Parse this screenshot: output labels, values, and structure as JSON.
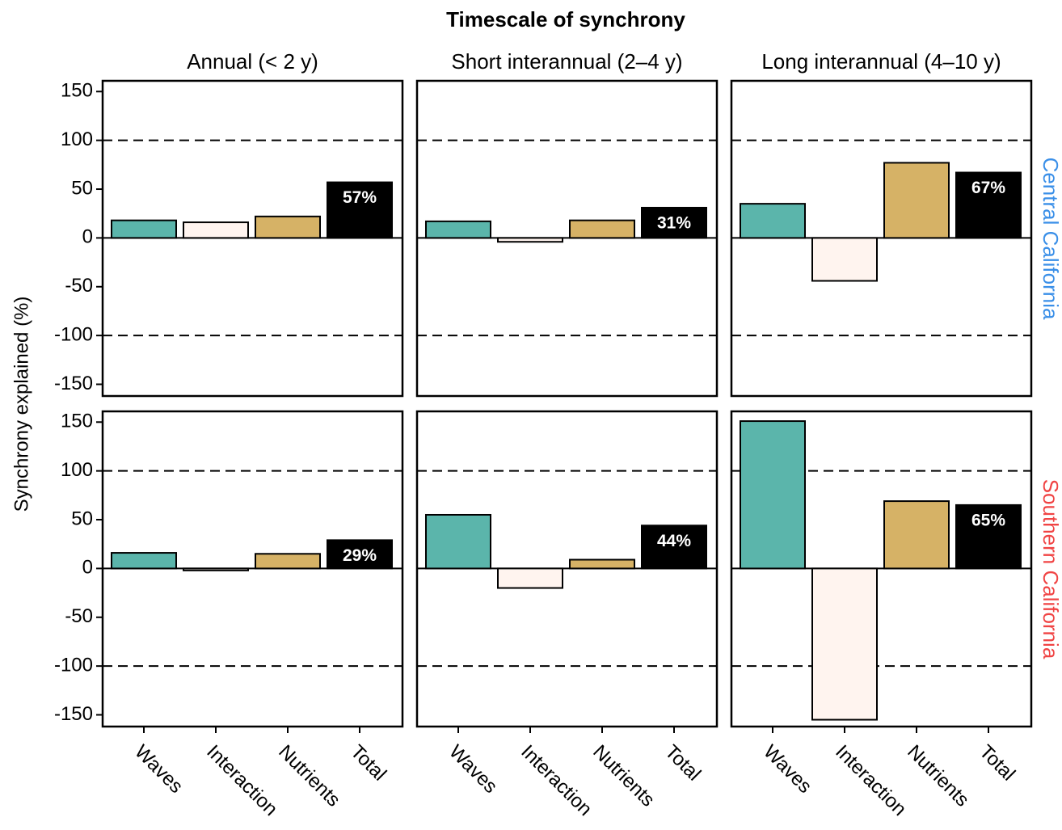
{
  "title": "Timescale of synchrony",
  "y_label": "Synchrony explained (%)",
  "columns": [
    "Annual (< 2 y)",
    "Short interannual (2–4 y)",
    "Long interannual (4–10 y)"
  ],
  "rows": [
    {
      "label": "Central California",
      "color": "#3a8fe8"
    },
    {
      "label": "Southern California",
      "color": "#f04444"
    }
  ],
  "colors": [
    "#5bb5ab",
    "#fff4ef",
    "#d6b266",
    "#000000"
  ],
  "chart_data": [
    {
      "type": "bar",
      "row": 0,
      "col": 0,
      "values": [
        18,
        16,
        22,
        57
      ],
      "value_labels": [
        null,
        null,
        null,
        "57%"
      ],
      "ylim": [
        -162,
        161
      ],
      "yticks": [
        150,
        100,
        50,
        0,
        -50,
        -100,
        -150
      ],
      "ref_lines": [
        100,
        -100
      ]
    },
    {
      "type": "bar",
      "row": 0,
      "col": 1,
      "values": [
        17,
        -4,
        18,
        31
      ],
      "value_labels": [
        null,
        null,
        null,
        "31%"
      ],
      "ylim": [
        -162,
        161
      ],
      "ref_lines": [
        100,
        -100
      ]
    },
    {
      "type": "bar",
      "row": 0,
      "col": 2,
      "values": [
        35,
        -44,
        77,
        67
      ],
      "value_labels": [
        null,
        null,
        null,
        "67%"
      ],
      "ylim": [
        -162,
        161
      ],
      "ref_lines": [
        100,
        -100
      ]
    },
    {
      "type": "bar",
      "row": 1,
      "col": 0,
      "categories": [
        "Waves",
        "Interaction",
        "Nutrients",
        "Total"
      ],
      "values": [
        16,
        -2,
        15,
        29
      ],
      "value_labels": [
        null,
        null,
        null,
        "29%"
      ],
      "ylim": [
        -162,
        161
      ],
      "yticks": [
        150,
        100,
        50,
        0,
        -50,
        -100,
        -150
      ],
      "ref_lines": [
        100,
        -100
      ]
    },
    {
      "type": "bar",
      "row": 1,
      "col": 1,
      "categories": [
        "Waves",
        "Interaction",
        "Nutrients",
        "Total"
      ],
      "values": [
        55,
        -20,
        9,
        44
      ],
      "value_labels": [
        null,
        null,
        null,
        "44%"
      ],
      "ylim": [
        -162,
        161
      ],
      "ref_lines": [
        100,
        -100
      ]
    },
    {
      "type": "bar",
      "row": 1,
      "col": 2,
      "categories": [
        "Waves",
        "Interaction",
        "Nutrients",
        "Total"
      ],
      "values": [
        151,
        -155,
        69,
        65
      ],
      "value_labels": [
        null,
        null,
        null,
        "65%"
      ],
      "ylim": [
        -162,
        161
      ],
      "ref_lines": [
        100,
        -100
      ]
    }
  ]
}
